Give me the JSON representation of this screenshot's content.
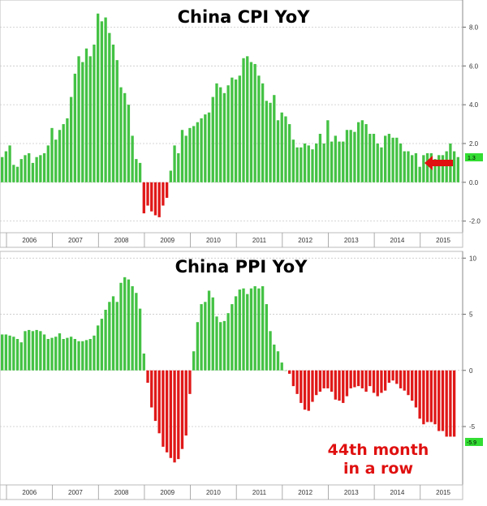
{
  "colors": {
    "positive": "#44c244",
    "negative": "#e01818",
    "badge": "#33dd33",
    "arrow": "#e01010"
  },
  "chart_data": [
    {
      "type": "bar",
      "title": "China CPI YoY",
      "years": [
        "2006",
        "2007",
        "2008",
        "2009",
        "2010",
        "2011",
        "2012",
        "2013",
        "2014",
        "2015"
      ],
      "start": "2005-11",
      "ylim": [
        -2.6,
        9.4
      ],
      "yticks": [
        "-2.0",
        "0.0",
        "2.0",
        "4.0",
        "6.0",
        "8.0"
      ],
      "ytick_values": [
        -2,
        0,
        2,
        4,
        6,
        8
      ],
      "last_value_label": "1.3",
      "last_value": 1.3,
      "values": [
        1.3,
        1.6,
        1.9,
        0.9,
        0.8,
        1.2,
        1.4,
        1.5,
        1.0,
        1.3,
        1.4,
        1.5,
        1.9,
        2.8,
        2.2,
        2.7,
        3.0,
        3.3,
        4.4,
        5.6,
        6.5,
        6.2,
        6.9,
        6.5,
        7.1,
        8.7,
        8.3,
        8.5,
        7.7,
        7.1,
        6.3,
        4.9,
        4.6,
        4.0,
        2.4,
        1.2,
        1.0,
        -1.6,
        -1.2,
        -1.5,
        -1.7,
        -1.8,
        -1.2,
        -0.8,
        0.6,
        1.9,
        1.5,
        2.7,
        2.4,
        2.8,
        2.9,
        3.1,
        3.3,
        3.5,
        3.6,
        4.4,
        5.1,
        4.9,
        4.6,
        5.0,
        5.4,
        5.3,
        5.5,
        6.4,
        6.5,
        6.2,
        6.1,
        5.5,
        5.1,
        4.2,
        4.1,
        4.5,
        3.2,
        3.6,
        3.4,
        3.0,
        2.2,
        1.8,
        1.8,
        2.0,
        1.9,
        1.7,
        2.0,
        2.5,
        2.0,
        3.2,
        2.1,
        2.4,
        2.1,
        2.1,
        2.7,
        2.7,
        2.6,
        3.1,
        3.2,
        3.0,
        2.5,
        2.5,
        2.0,
        1.8,
        2.4,
        2.5,
        2.3,
        2.3,
        2.0,
        1.6,
        1.6,
        1.4,
        1.5,
        0.8,
        1.4,
        1.5,
        1.5,
        1.2,
        1.4,
        1.4,
        1.6,
        2.0,
        1.6,
        1.3
      ]
    },
    {
      "type": "bar",
      "title": "China PPI YoY",
      "years": [
        "2006",
        "2007",
        "2008",
        "2009",
        "2010",
        "2011",
        "2012",
        "2013",
        "2014",
        "2015"
      ],
      "start": "2005-11",
      "ylim": [
        -10.2,
        10.6
      ],
      "yticks": [
        "-5",
        "0",
        "5",
        "10"
      ],
      "ytick_values": [
        -5,
        0,
        5,
        10
      ],
      "last_value_label": "-5.9",
      "last_value": -5.9,
      "values": [
        3.2,
        3.2,
        3.1,
        3.0,
        2.8,
        2.5,
        3.5,
        3.6,
        3.5,
        3.6,
        3.5,
        3.2,
        2.8,
        2.9,
        3.0,
        3.3,
        2.8,
        2.9,
        3.0,
        2.8,
        2.6,
        2.6,
        2.7,
        2.8,
        3.1,
        4.0,
        4.6,
        5.4,
        6.1,
        6.6,
        6.1,
        7.8,
        8.3,
        8.1,
        7.5,
        6.9,
        5.5,
        1.5,
        -1.1,
        -3.3,
        -4.5,
        -5.6,
        -6.8,
        -7.3,
        -7.8,
        -8.2,
        -7.9,
        -7.0,
        -5.8,
        -2.1,
        1.7,
        4.3,
        5.9,
        6.1,
        7.1,
        6.5,
        4.8,
        4.3,
        4.4,
        5.1,
        5.9,
        6.6,
        7.2,
        7.3,
        6.8,
        7.3,
        7.5,
        7.3,
        7.5,
        5.9,
        3.5,
        2.3,
        1.7,
        0.7,
        0.0,
        -0.3,
        -1.4,
        -2.1,
        -2.9,
        -3.5,
        -3.6,
        -2.8,
        -2.2,
        -1.9,
        -1.6,
        -1.6,
        -1.9,
        -2.6,
        -2.7,
        -2.9,
        -2.3,
        -1.6,
        -1.5,
        -1.4,
        -1.6,
        -1.9,
        -1.4,
        -2.0,
        -2.3,
        -2.0,
        -1.8,
        -1.1,
        -0.9,
        -1.2,
        -1.6,
        -1.8,
        -2.2,
        -2.7,
        -3.3,
        -4.3,
        -4.8,
        -4.6,
        -4.6,
        -4.8,
        -5.4,
        -5.4,
        -5.9,
        -5.9,
        -5.9
      ]
    }
  ],
  "annotation": {
    "line1": "44th month",
    "line2": "in a row"
  }
}
